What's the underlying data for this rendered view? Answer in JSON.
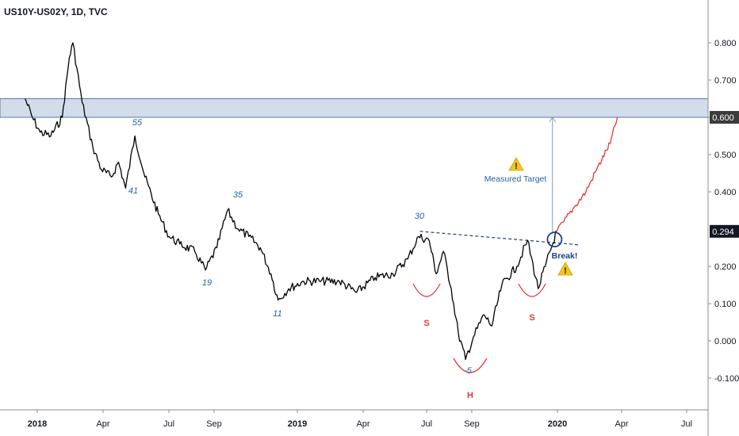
{
  "header": {
    "symbol": "US10Y-US02Y, 1D, TVC"
  },
  "chart_data": {
    "type": "line",
    "title": "US10Y-US02Y, 1D, TVC",
    "ylim": [
      -0.19,
      0.92
    ],
    "y_ticks": [
      "0.800",
      "0.700",
      "0.600",
      "0.500",
      "0.400",
      "0.200",
      "0.100",
      "0.000",
      "-0.100"
    ],
    "x_ticks": [
      {
        "label": "2018",
        "bold": true
      },
      {
        "label": "Apr",
        "bold": false
      },
      {
        "label": "Jul",
        "bold": false
      },
      {
        "label": "Sep",
        "bold": false
      },
      {
        "label": "2019",
        "bold": true
      },
      {
        "label": "Apr",
        "bold": false
      },
      {
        "label": "Jul",
        "bold": false
      },
      {
        "label": "Sep",
        "bold": false
      },
      {
        "label": "2020",
        "bold": true
      },
      {
        "label": "Apr",
        "bold": false
      },
      {
        "label": "Jul",
        "bold": false
      }
    ],
    "current_price": "0.294",
    "highlight_price": "0.600",
    "resistance_zone": [
      0.6,
      0.65
    ],
    "series": [
      {
        "color": "#000000",
        "points": [
          [
            "2017-12-15",
            0.65
          ],
          [
            "2017-12-25",
            0.6
          ],
          [
            "2018-01-05",
            0.56
          ],
          [
            "2018-01-20",
            0.55
          ],
          [
            "2018-02-05",
            0.6
          ],
          [
            "2018-02-15",
            0.76
          ],
          [
            "2018-02-20",
            0.8
          ],
          [
            "2018-03-05",
            0.64
          ],
          [
            "2018-03-20",
            0.52
          ],
          [
            "2018-04-01",
            0.46
          ],
          [
            "2018-04-15",
            0.44
          ],
          [
            "2018-04-25",
            0.48
          ],
          [
            "2018-05-05",
            0.41
          ],
          [
            "2018-05-18",
            0.55
          ],
          [
            "2018-06-01",
            0.44
          ],
          [
            "2018-06-20",
            0.34
          ],
          [
            "2018-07-05",
            0.28
          ],
          [
            "2018-07-20",
            0.26
          ],
          [
            "2018-08-10",
            0.24
          ],
          [
            "2018-08-25",
            0.19
          ],
          [
            "2018-09-10",
            0.25
          ],
          [
            "2018-09-25",
            0.35
          ],
          [
            "2018-10-10",
            0.3
          ],
          [
            "2018-10-25",
            0.28
          ],
          [
            "2018-11-10",
            0.25
          ],
          [
            "2018-11-25",
            0.18
          ],
          [
            "2018-12-05",
            0.11
          ],
          [
            "2018-12-20",
            0.14
          ],
          [
            "2019-01-10",
            0.16
          ],
          [
            "2019-02-01",
            0.16
          ],
          [
            "2019-03-01",
            0.16
          ],
          [
            "2019-03-25",
            0.13
          ],
          [
            "2019-04-20",
            0.17
          ],
          [
            "2019-05-15",
            0.18
          ],
          [
            "2019-06-05",
            0.22
          ],
          [
            "2019-06-20",
            0.28
          ],
          [
            "2019-07-05",
            0.27
          ],
          [
            "2019-07-15",
            0.18
          ],
          [
            "2019-07-25",
            0.24
          ],
          [
            "2019-08-05",
            0.14
          ],
          [
            "2019-08-15",
            0.02
          ],
          [
            "2019-08-25",
            -0.05
          ],
          [
            "2019-09-05",
            0.01
          ],
          [
            "2019-09-20",
            0.07
          ],
          [
            "2019-10-01",
            0.04
          ],
          [
            "2019-10-15",
            0.15
          ],
          [
            "2019-11-05",
            0.2
          ],
          [
            "2019-11-20",
            0.27
          ],
          [
            "2019-12-05",
            0.14
          ],
          [
            "2019-12-15",
            0.2
          ],
          [
            "2019-12-31",
            0.294
          ]
        ]
      },
      {
        "color": "#e53935",
        "points": [
          [
            "2019-12-31",
            0.294
          ],
          [
            "2020-01-10",
            0.32
          ],
          [
            "2020-01-25",
            0.36
          ],
          [
            "2020-02-10",
            0.4
          ],
          [
            "2020-02-25",
            0.46
          ],
          [
            "2020-03-15",
            0.53
          ],
          [
            "2020-03-25",
            0.6
          ]
        ]
      }
    ],
    "annotations": {
      "wave_labels": [
        "55",
        "41",
        "35",
        "19",
        "11",
        "30",
        "-5"
      ],
      "pattern_labels": [
        "S",
        "H",
        "S"
      ],
      "measured_target": "Measured Target",
      "break_label": "Break!"
    }
  }
}
